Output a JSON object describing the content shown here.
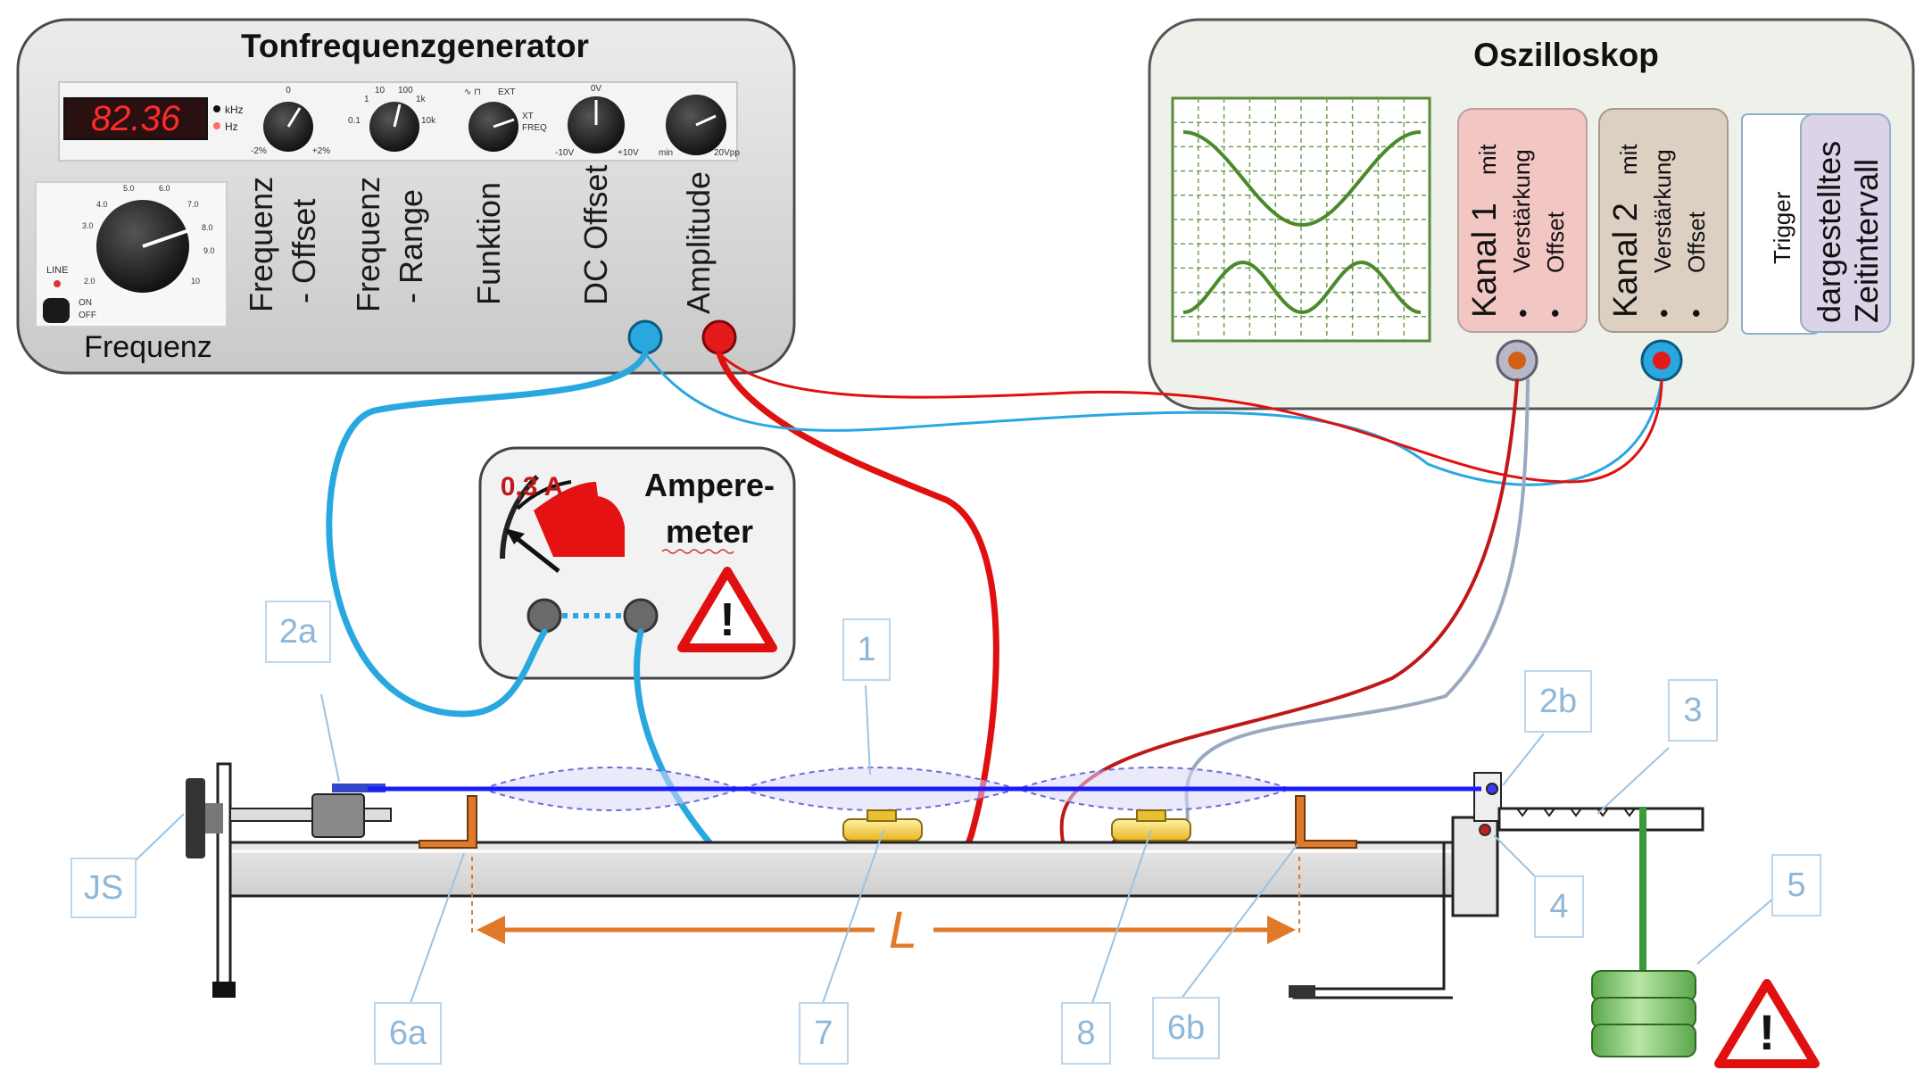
{
  "generator": {
    "title": "Tonfrequenzgenerator",
    "display_value": "82.36",
    "unit_khz": "kHz",
    "unit_hz": "Hz",
    "line_label": "LINE",
    "on_label": "ON",
    "off_label": "OFF",
    "frequency_label": "Frequenz",
    "control_labels": [
      "Frequenz\n- Offset",
      "Frequenz\n- Range",
      "Funktion",
      "DC Offset",
      "Amplitude"
    ],
    "scale_labels": {
      "k1_left": "-2%",
      "k1_right": "+2%",
      "k1_top": "0",
      "k2_a": "1",
      "k2_b": "10",
      "k2_c": "100",
      "k2_d": "1k",
      "k2_e": "10k",
      "k2_f": "0.1",
      "k3_a": "EXT",
      "k3_b": "XT",
      "k3_c": "FREQ",
      "k4_top": "0V",
      "k4_left": "-10V",
      "k4_right": "+10V",
      "k5_left": "min",
      "k5_right": "20Vpp",
      "big_dial": [
        "2.0",
        "3.0",
        "4.0",
        "5.0",
        "6.0",
        "7.0",
        "8.0",
        "9.0",
        "10"
      ]
    },
    "colors": {
      "body": "#dcdcdc",
      "display": "#ff2020"
    }
  },
  "oscilloscope": {
    "title": "Oszilloskop",
    "channel1": {
      "title": "Kanal 1",
      "mit": "mit",
      "bullets": [
        "Verstärkung",
        "Offset"
      ],
      "color": "#f2c6c3"
    },
    "channel2": {
      "title": "Kanal 2",
      "mit": "mit",
      "bullets": [
        "Verstärkung",
        "Offset"
      ],
      "color": "#dcd0c2"
    },
    "trigger": "Trigger",
    "interval": {
      "line1": "dargestelltes",
      "line2": "Zeitintervall",
      "color": "#dcd3e8"
    },
    "trace_color": "#4a8a2a"
  },
  "ammeter": {
    "title_line1": "Ampere-",
    "title_line2": "meter",
    "limit": "0,3 A"
  },
  "apparatus": {
    "length_label": "L",
    "labels": [
      "1",
      "2a",
      "2b",
      "3",
      "4",
      "5",
      "6a",
      "6b",
      "7",
      "8",
      "JS"
    ]
  },
  "colors": {
    "cable_blue": "#29a8e0",
    "cable_red": "#e01010",
    "cable_gray": "#9aa8c0",
    "cable_darkred": "#c01818",
    "wire": "#1a1aff",
    "length_arrow": "#e07a2a"
  }
}
